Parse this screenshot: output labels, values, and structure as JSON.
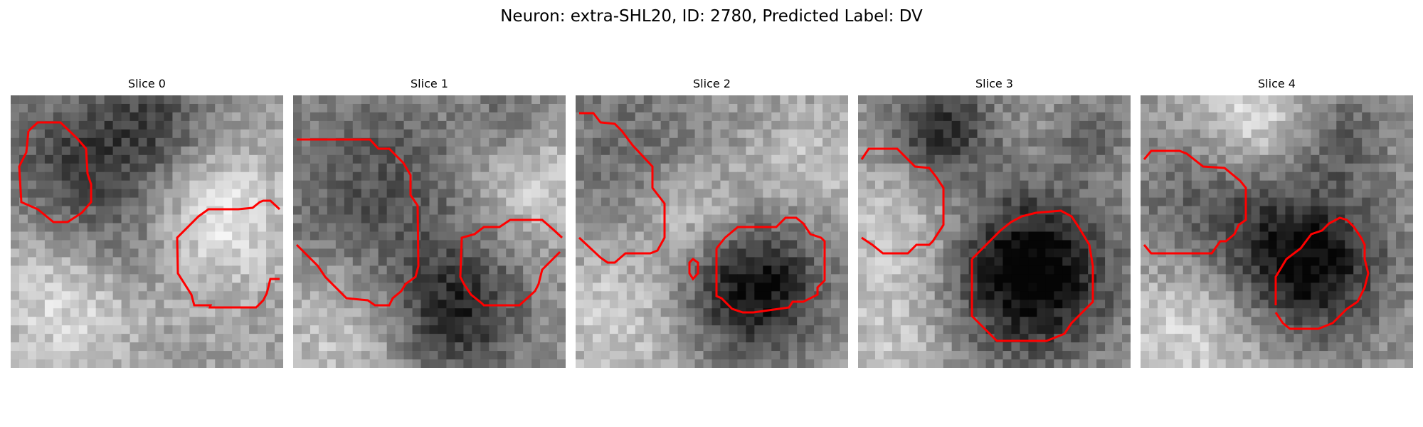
{
  "figure": {
    "title": "Neuron: extra-SHL20, ID: 2780, Predicted Label: DV"
  },
  "panels": [
    {
      "title": "Slice 0"
    },
    {
      "title": "Slice 1"
    },
    {
      "title": "Slice 2"
    },
    {
      "title": "Slice 3"
    },
    {
      "title": "Slice 4"
    }
  ],
  "colors": {
    "contour": "#ff0000",
    "background": "#ffffff"
  }
}
